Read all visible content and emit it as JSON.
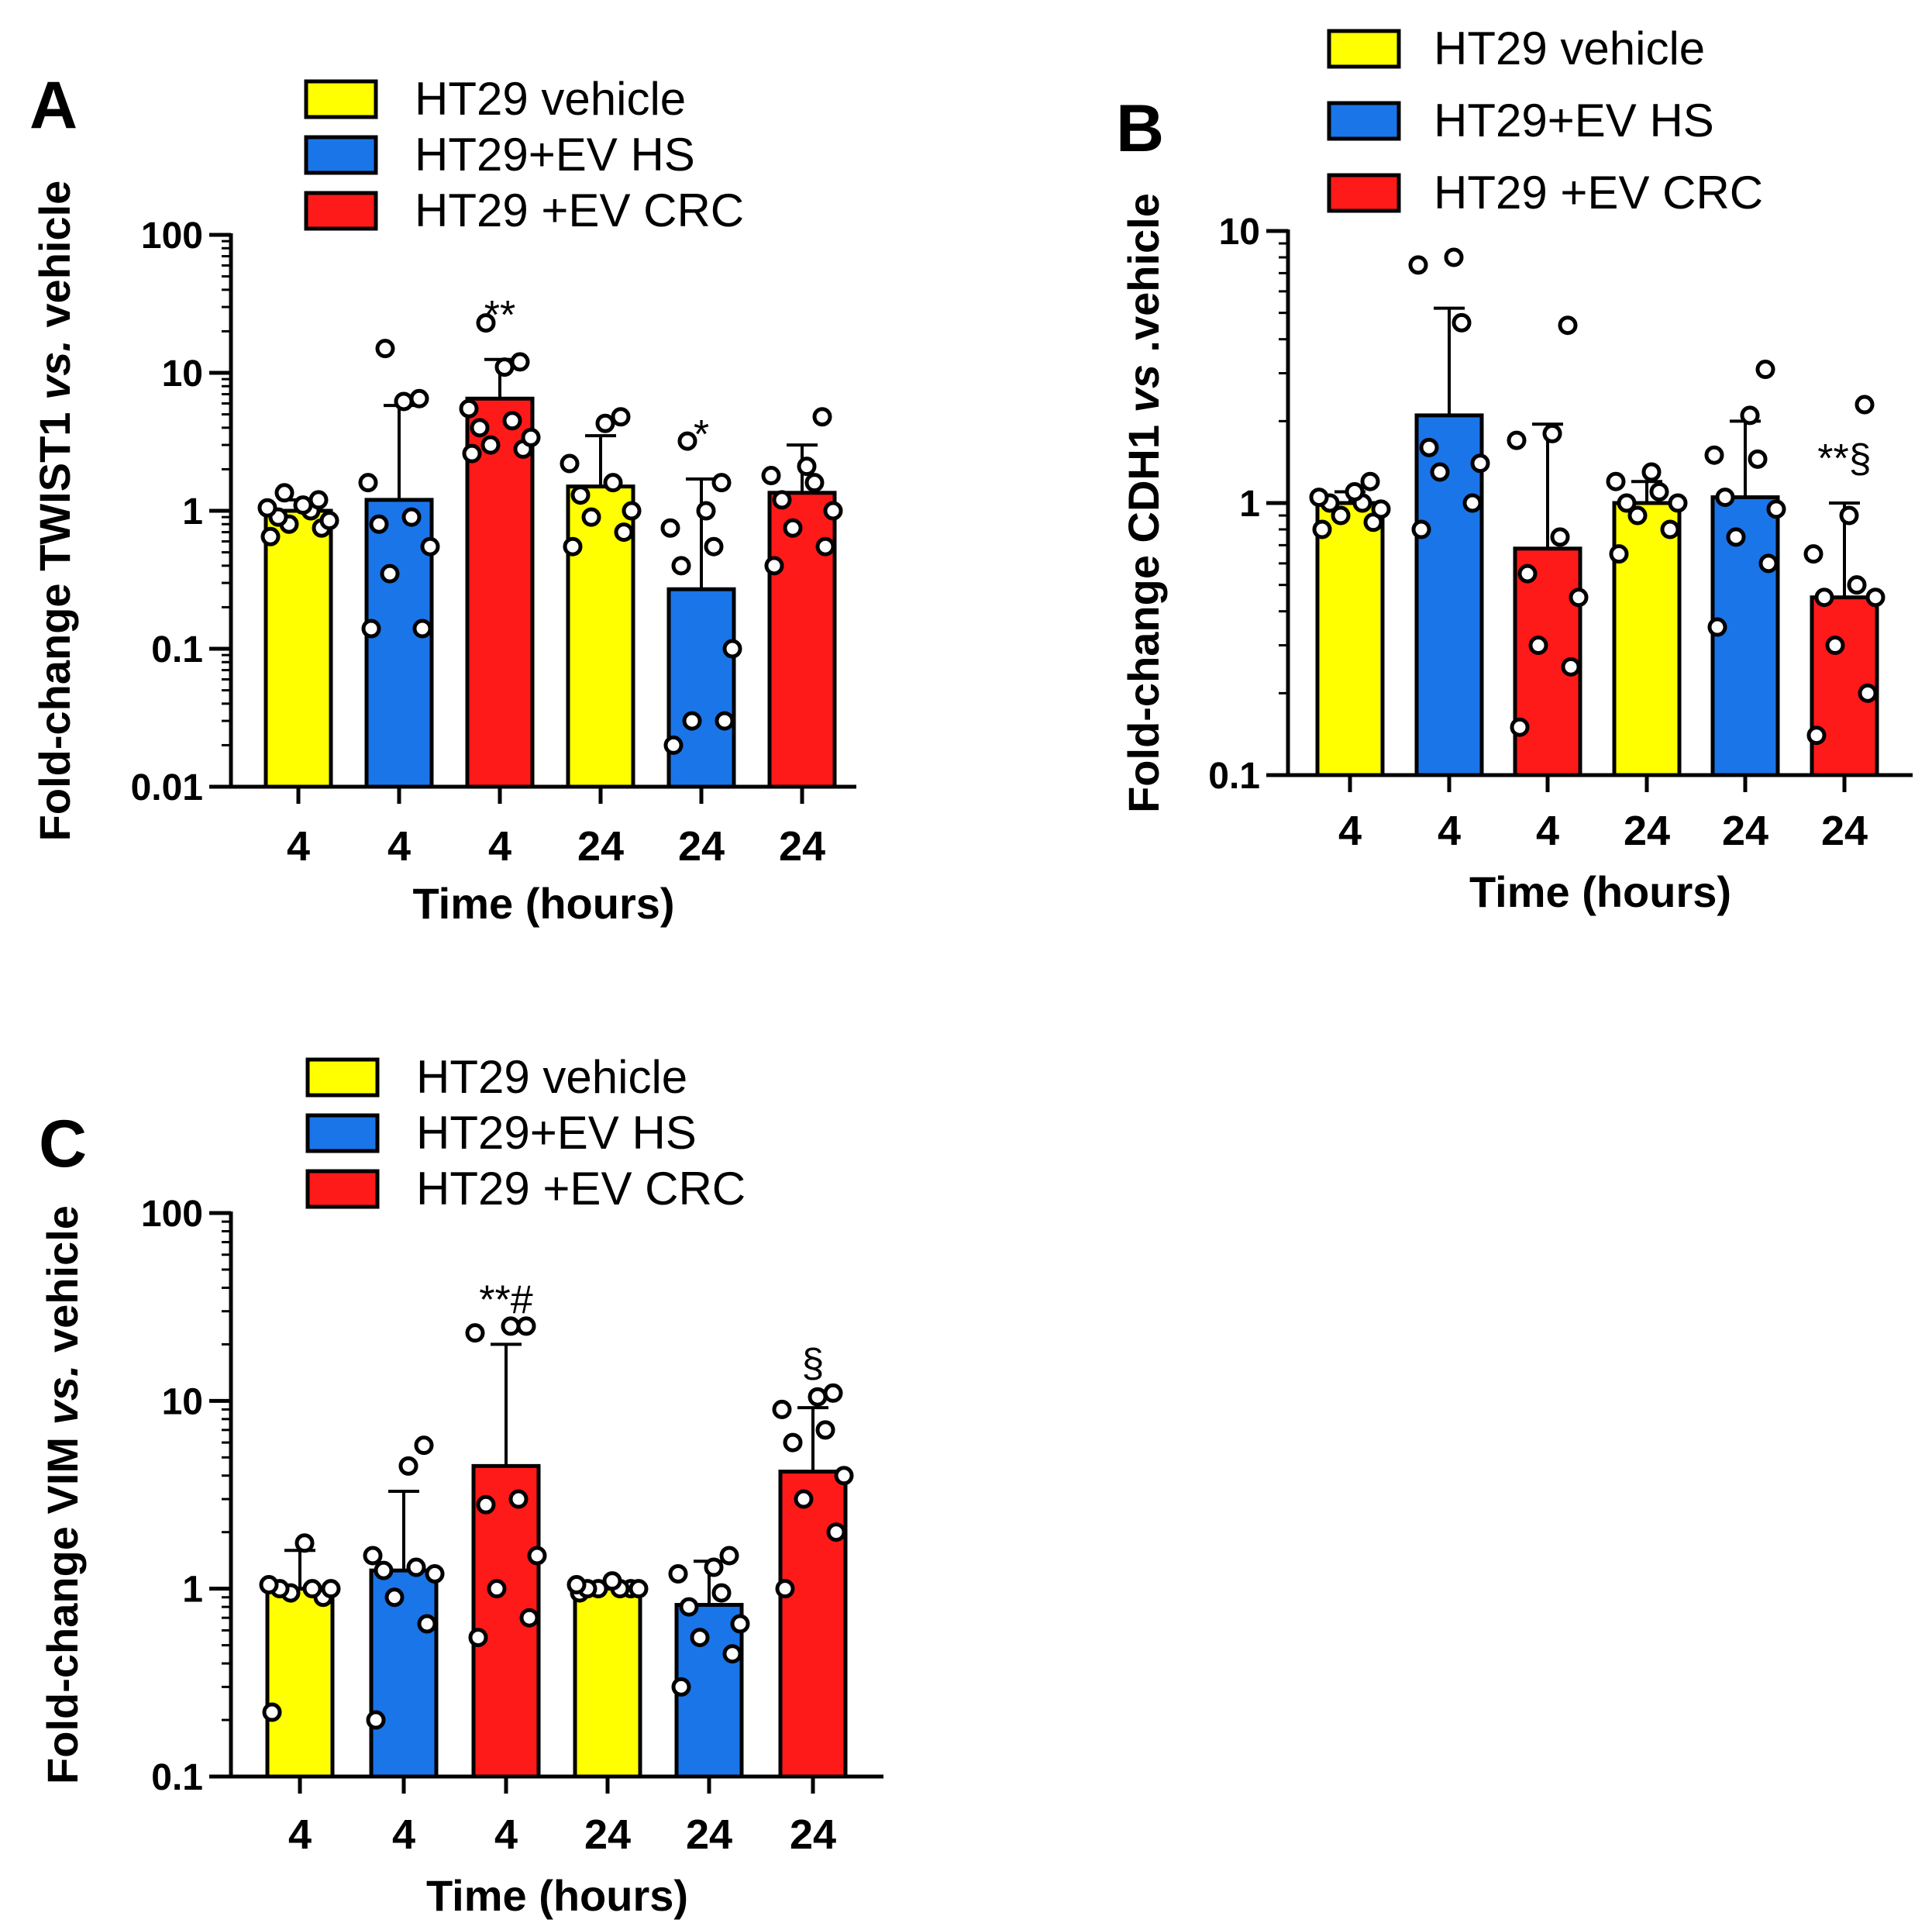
{
  "chart_data": [
    {
      "panel": "A",
      "type": "bar",
      "scale": "log",
      "ylim": [
        0.01,
        100
      ],
      "yticks": [
        "100",
        "10",
        "1",
        "0.1",
        "0.01"
      ],
      "ylabel_parts": [
        "Fold-change TWIST1 ",
        "vs.",
        " vehicle"
      ],
      "xlabel": "Time (hours)",
      "legend": [
        {
          "label": "HT29 vehicle",
          "color": "#ffff00"
        },
        {
          "label": "HT29+EV HS",
          "color": "#1a75e8"
        },
        {
          "label": "HT29 +EV CRC",
          "color": "#ff1a1a"
        }
      ],
      "categories": [
        "4",
        "4",
        "4",
        "24",
        "24",
        "24"
      ],
      "bars": [
        {
          "group": "HT29 vehicle",
          "value": 1.0,
          "err_upper": 1.2,
          "annotation": "",
          "points": [
            0.65,
            0.75,
            0.8,
            0.85,
            0.9,
            1.0,
            1.05,
            1.1,
            1.2,
            1.35
          ]
        },
        {
          "group": "HT29+EV HS",
          "value": 1.2,
          "err_upper": 5.8,
          "annotation": "",
          "points": [
            0.14,
            0.14,
            0.35,
            0.55,
            0.8,
            0.9,
            1.6,
            6.2,
            6.5,
            15.0
          ]
        },
        {
          "group": "HT29 +EV CRC",
          "value": 6.5,
          "err_upper": 12.5,
          "annotation": "**",
          "points": [
            2.6,
            2.8,
            3.0,
            3.4,
            4.0,
            4.5,
            5.5,
            11.0,
            12.0,
            23.0
          ]
        },
        {
          "group": "HT29 vehicle",
          "value": 1.5,
          "err_upper": 3.5,
          "annotation": "",
          "points": [
            0.55,
            0.7,
            0.9,
            1.0,
            1.3,
            1.6,
            2.2,
            4.3,
            4.8
          ]
        },
        {
          "group": "HT29+EV HS",
          "value": 0.27,
          "err_upper": 1.7,
          "annotation": "*",
          "points": [
            0.02,
            0.03,
            0.03,
            0.1,
            0.4,
            0.55,
            0.75,
            1.0,
            1.6,
            3.2
          ]
        },
        {
          "group": "HT29 +EV CRC",
          "value": 1.35,
          "err_upper": 3.0,
          "annotation": "",
          "points": [
            0.4,
            0.55,
            0.75,
            1.0,
            1.2,
            1.6,
            1.8,
            2.1,
            4.8
          ]
        }
      ]
    },
    {
      "panel": "B",
      "type": "bar",
      "scale": "log",
      "ylim": [
        0.1,
        10
      ],
      "yticks": [
        "10",
        "1",
        "0.1"
      ],
      "ylabel_parts": [
        "Fold-change CDH1  ",
        "vs",
        " .vehicle"
      ],
      "xlabel": "Time (hours)",
      "legend": [
        {
          "label": "HT29 vehicle",
          "color": "#ffff00"
        },
        {
          "label": "HT29+EV HS",
          "color": "#1a75e8"
        },
        {
          "label": "HT29 +EV CRC",
          "color": "#ff1a1a"
        }
      ],
      "categories": [
        "4",
        "4",
        "4",
        "24",
        "24",
        "24"
      ],
      "bars": [
        {
          "group": "HT29 vehicle",
          "value": 1.0,
          "err_upper": 1.1,
          "annotation": "",
          "points": [
            0.8,
            0.85,
            0.9,
            0.95,
            1.0,
            1.0,
            1.05,
            1.1,
            1.2
          ]
        },
        {
          "group": "HT29+EV HS",
          "value": 2.1,
          "err_upper": 5.2,
          "annotation": "",
          "points": [
            0.8,
            1.0,
            1.3,
            1.4,
            1.6,
            4.6,
            7.5,
            8.0
          ]
        },
        {
          "group": "HT29 +EV CRC",
          "value": 0.68,
          "err_upper": 1.95,
          "annotation": "",
          "points": [
            0.15,
            0.25,
            0.3,
            0.45,
            0.55,
            0.75,
            1.7,
            1.8,
            4.5
          ]
        },
        {
          "group": "HT29 vehicle",
          "value": 1.0,
          "err_upper": 1.2,
          "annotation": "",
          "points": [
            0.65,
            0.8,
            0.9,
            1.0,
            1.0,
            1.1,
            1.2,
            1.3
          ]
        },
        {
          "group": "HT29+EV HS",
          "value": 1.05,
          "err_upper": 2.0,
          "annotation": "",
          "points": [
            0.35,
            0.6,
            0.75,
            0.95,
            1.05,
            1.45,
            1.5,
            2.1,
            3.1
          ]
        },
        {
          "group": "HT29 +EV CRC",
          "value": 0.45,
          "err_upper": 1.0,
          "annotation": "**§",
          "points": [
            0.14,
            0.2,
            0.3,
            0.45,
            0.45,
            0.5,
            0.65,
            0.9,
            2.3
          ]
        }
      ]
    },
    {
      "panel": "C",
      "type": "bar",
      "scale": "log",
      "ylim": [
        0.1,
        100
      ],
      "yticks": [
        "100",
        "10",
        "1",
        "0.1"
      ],
      "ylabel_parts": [
        "Fold-change VIM ",
        "vs.",
        " vehicle"
      ],
      "xlabel": "Time (hours)",
      "legend": [
        {
          "label": "HT29 vehicle",
          "color": "#ffff00"
        },
        {
          "label": "HT29+EV HS",
          "color": "#1a75e8"
        },
        {
          "label": "HT29 +EV CRC",
          "color": "#ff1a1a"
        }
      ],
      "categories": [
        "4",
        "4",
        "4",
        "24",
        "24",
        "24"
      ],
      "bars": [
        {
          "group": "HT29 vehicle",
          "value": 1.0,
          "err_upper": 1.6,
          "annotation": "",
          "points": [
            0.22,
            0.9,
            0.95,
            1.0,
            1.0,
            1.0,
            1.05,
            1.75
          ]
        },
        {
          "group": "HT29+EV HS",
          "value": 1.25,
          "err_upper": 3.3,
          "annotation": "",
          "points": [
            0.2,
            0.65,
            0.9,
            1.2,
            1.25,
            1.3,
            1.5,
            4.5,
            5.8
          ]
        },
        {
          "group": "HT29 +EV CRC",
          "value": 4.5,
          "err_upper": 20.0,
          "annotation": "**#",
          "points": [
            0.55,
            0.7,
            1.0,
            1.5,
            2.8,
            3.0,
            23.0,
            25.0,
            25.0
          ]
        },
        {
          "group": "HT29 vehicle",
          "value": 1.0,
          "err_upper": 1.05,
          "annotation": "",
          "points": [
            0.95,
            1.0,
            1.0,
            1.0,
            1.0,
            1.0,
            1.05,
            1.1
          ]
        },
        {
          "group": "HT29+EV HS",
          "value": 0.82,
          "err_upper": 1.4,
          "annotation": "",
          "points": [
            0.3,
            0.45,
            0.55,
            0.65,
            0.8,
            0.95,
            1.2,
            1.3,
            1.5
          ]
        },
        {
          "group": "HT29 +EV CRC",
          "value": 4.2,
          "err_upper": 9.2,
          "annotation": "§",
          "points": [
            1.0,
            2.0,
            3.0,
            4.0,
            6.0,
            7.0,
            9.0,
            10.5,
            11.0
          ]
        }
      ]
    }
  ]
}
